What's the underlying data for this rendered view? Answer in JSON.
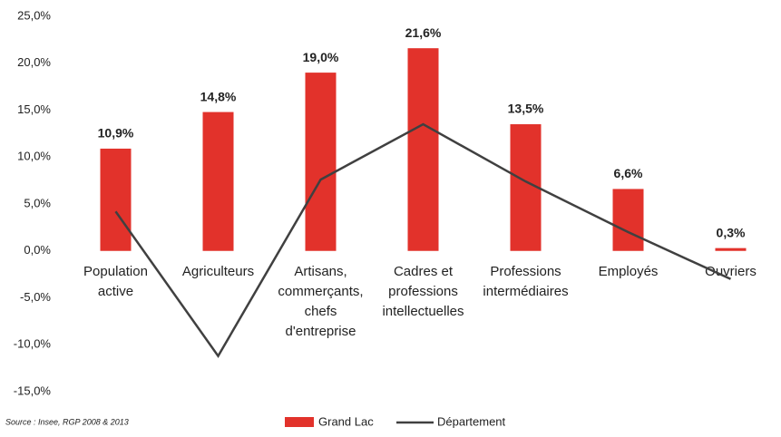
{
  "chart_data": {
    "type": "bar_line",
    "source": "Source : Insee, RGP 2008 & 2013",
    "categories": [
      [
        "Population",
        "active"
      ],
      [
        "Agriculteurs"
      ],
      [
        "Artisans,",
        "commerçants,",
        "chefs",
        "d'entreprise"
      ],
      [
        "Cadres et",
        "professions",
        "intellectuelles"
      ],
      [
        "Professions",
        "intermédiaires"
      ],
      [
        "Employés"
      ],
      [
        "Ouvriers"
      ]
    ],
    "series": [
      {
        "name": "Grand Lac",
        "type": "bar",
        "color": "#e2322b",
        "values": [
          10.9,
          14.8,
          19.0,
          21.6,
          13.5,
          6.6,
          0.3
        ],
        "value_labels": [
          "10,9%",
          "14,8%",
          "19,0%",
          "21,6%",
          "13,5%",
          "6,6%",
          "0,3%"
        ]
      },
      {
        "name": "Département",
        "type": "line",
        "color": "#404040",
        "values": [
          4.2,
          -11.2,
          7.6,
          13.5,
          7.4,
          2.0,
          -3.0
        ]
      }
    ],
    "ylim": [
      -15,
      25
    ],
    "yticks": [
      {
        "value": -15,
        "label": "-15,0%"
      },
      {
        "value": -10,
        "label": "-10,0%"
      },
      {
        "value": -5,
        "label": "-5,0%"
      },
      {
        "value": 0,
        "label": "0,0%"
      },
      {
        "value": 5,
        "label": "5,0%"
      },
      {
        "value": 10,
        "label": "10,0%"
      },
      {
        "value": 15,
        "label": "15,0%"
      },
      {
        "value": 20,
        "label": "20,0%"
      },
      {
        "value": 25,
        "label": "25,0%"
      }
    ],
    "grid": false,
    "legend": "bottom"
  }
}
